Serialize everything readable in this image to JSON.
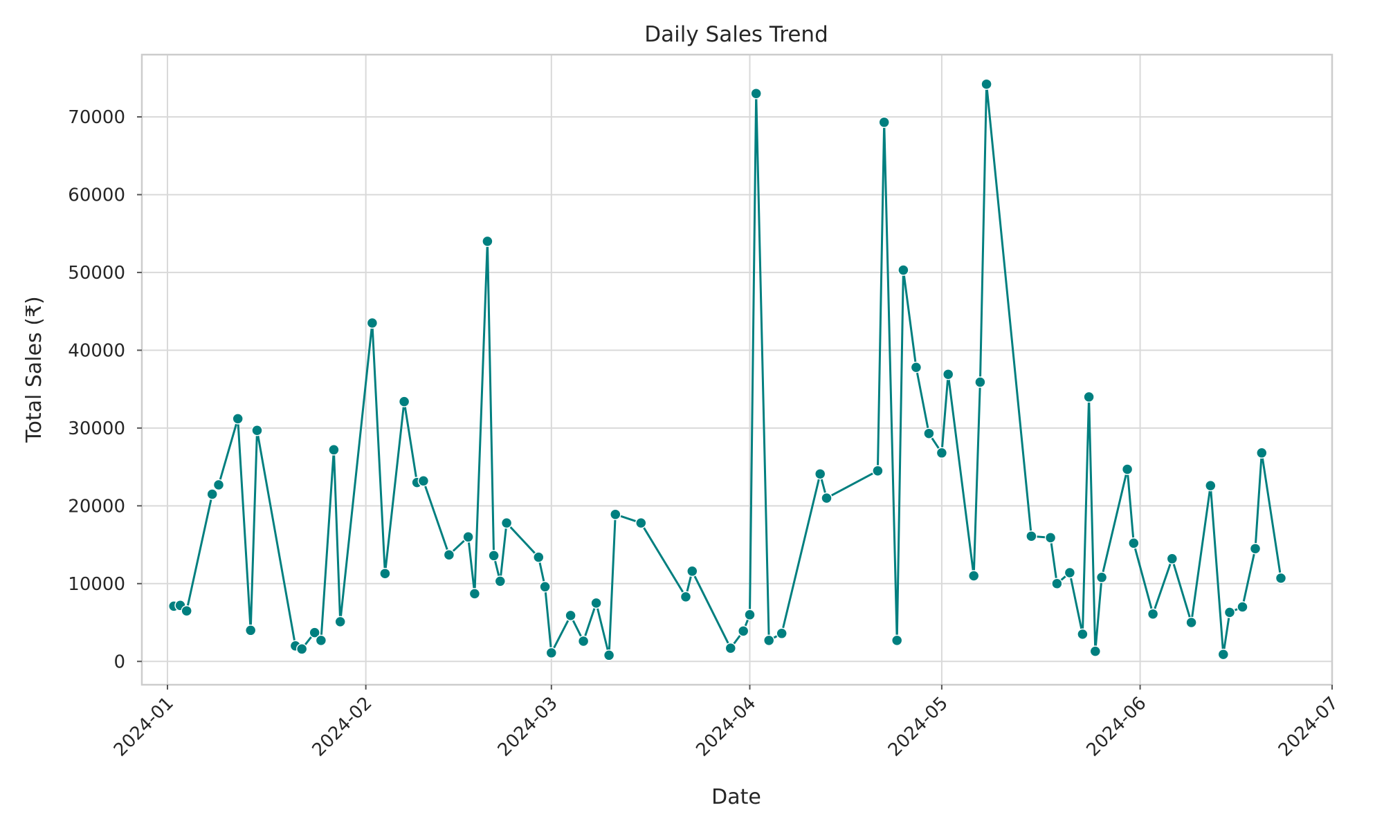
{
  "chart_data": {
    "type": "line",
    "title": "Daily Sales Trend",
    "xlabel": "Date",
    "ylabel": "Total Sales (₹)",
    "x_axis_type": "date",
    "xlim": [
      "2023-12-28",
      "2024-07-01"
    ],
    "ylim": [
      -3000,
      78000
    ],
    "x_ticks": [
      "2024-01-01",
      "2024-02-01",
      "2024-03-01",
      "2024-04-01",
      "2024-05-01",
      "2024-06-01",
      "2024-07-01"
    ],
    "x_tick_labels": [
      "2024-01",
      "2024-02",
      "2024-03",
      "2024-04",
      "2024-05",
      "2024-06",
      "2024-07"
    ],
    "y_ticks": [
      0,
      10000,
      20000,
      30000,
      40000,
      50000,
      60000,
      70000
    ],
    "y_tick_labels": [
      "0",
      "10000",
      "20000",
      "30000",
      "40000",
      "50000",
      "60000",
      "70000"
    ],
    "grid": true,
    "legend": "none",
    "colors": {
      "series": "#007f7f",
      "grid": "#d9d9d9",
      "axes_edge": "#cccccc",
      "text": "#262626"
    },
    "series": [
      {
        "marker": "circle",
        "x": [
          "2024-01-02",
          "2024-01-03",
          "2024-01-04",
          "2024-01-08",
          "2024-01-09",
          "2024-01-12",
          "2024-01-14",
          "2024-01-15",
          "2024-01-21",
          "2024-01-22",
          "2024-01-24",
          "2024-01-25",
          "2024-01-27",
          "2024-01-28",
          "2024-02-02",
          "2024-02-04",
          "2024-02-07",
          "2024-02-09",
          "2024-02-10",
          "2024-02-14",
          "2024-02-17",
          "2024-02-18",
          "2024-02-20",
          "2024-02-21",
          "2024-02-22",
          "2024-02-23",
          "2024-02-28",
          "2024-02-29",
          "2024-03-01",
          "2024-03-04",
          "2024-03-06",
          "2024-03-08",
          "2024-03-10",
          "2024-03-11",
          "2024-03-15",
          "2024-03-22",
          "2024-03-23",
          "2024-03-29",
          "2024-03-31",
          "2024-04-01",
          "2024-04-02",
          "2024-04-04",
          "2024-04-06",
          "2024-04-12",
          "2024-04-13",
          "2024-04-21",
          "2024-04-22",
          "2024-04-24",
          "2024-04-25",
          "2024-04-27",
          "2024-04-29",
          "2024-05-01",
          "2024-05-02",
          "2024-05-06",
          "2024-05-07",
          "2024-05-08",
          "2024-05-15",
          "2024-05-18",
          "2024-05-19",
          "2024-05-21",
          "2024-05-23",
          "2024-05-24",
          "2024-05-25",
          "2024-05-26",
          "2024-05-30",
          "2024-05-31",
          "2024-06-03",
          "2024-06-06",
          "2024-06-09",
          "2024-06-12",
          "2024-06-14",
          "2024-06-15",
          "2024-06-17",
          "2024-06-19",
          "2024-06-20",
          "2024-06-23"
        ],
        "y": [
          7100,
          7200,
          6500,
          21500,
          22700,
          31200,
          4000,
          29700,
          2000,
          1600,
          3700,
          2700,
          27200,
          5100,
          43500,
          11300,
          33400,
          23000,
          23200,
          13700,
          16000,
          8700,
          54000,
          13600,
          10300,
          17800,
          13400,
          9600,
          1100,
          5900,
          2600,
          7500,
          800,
          18900,
          17800,
          8300,
          11600,
          1700,
          3900,
          6000,
          73000,
          2700,
          3600,
          24100,
          21000,
          24500,
          69300,
          2700,
          50300,
          37800,
          29300,
          26800,
          36900,
          11000,
          35900,
          74200,
          16100,
          15900,
          10000,
          11400,
          3500,
          34000,
          1300,
          10800,
          24700,
          15200,
          6100,
          13200,
          5000,
          22600,
          900,
          6300,
          7000,
          14500,
          26800,
          10700
        ]
      }
    ]
  }
}
